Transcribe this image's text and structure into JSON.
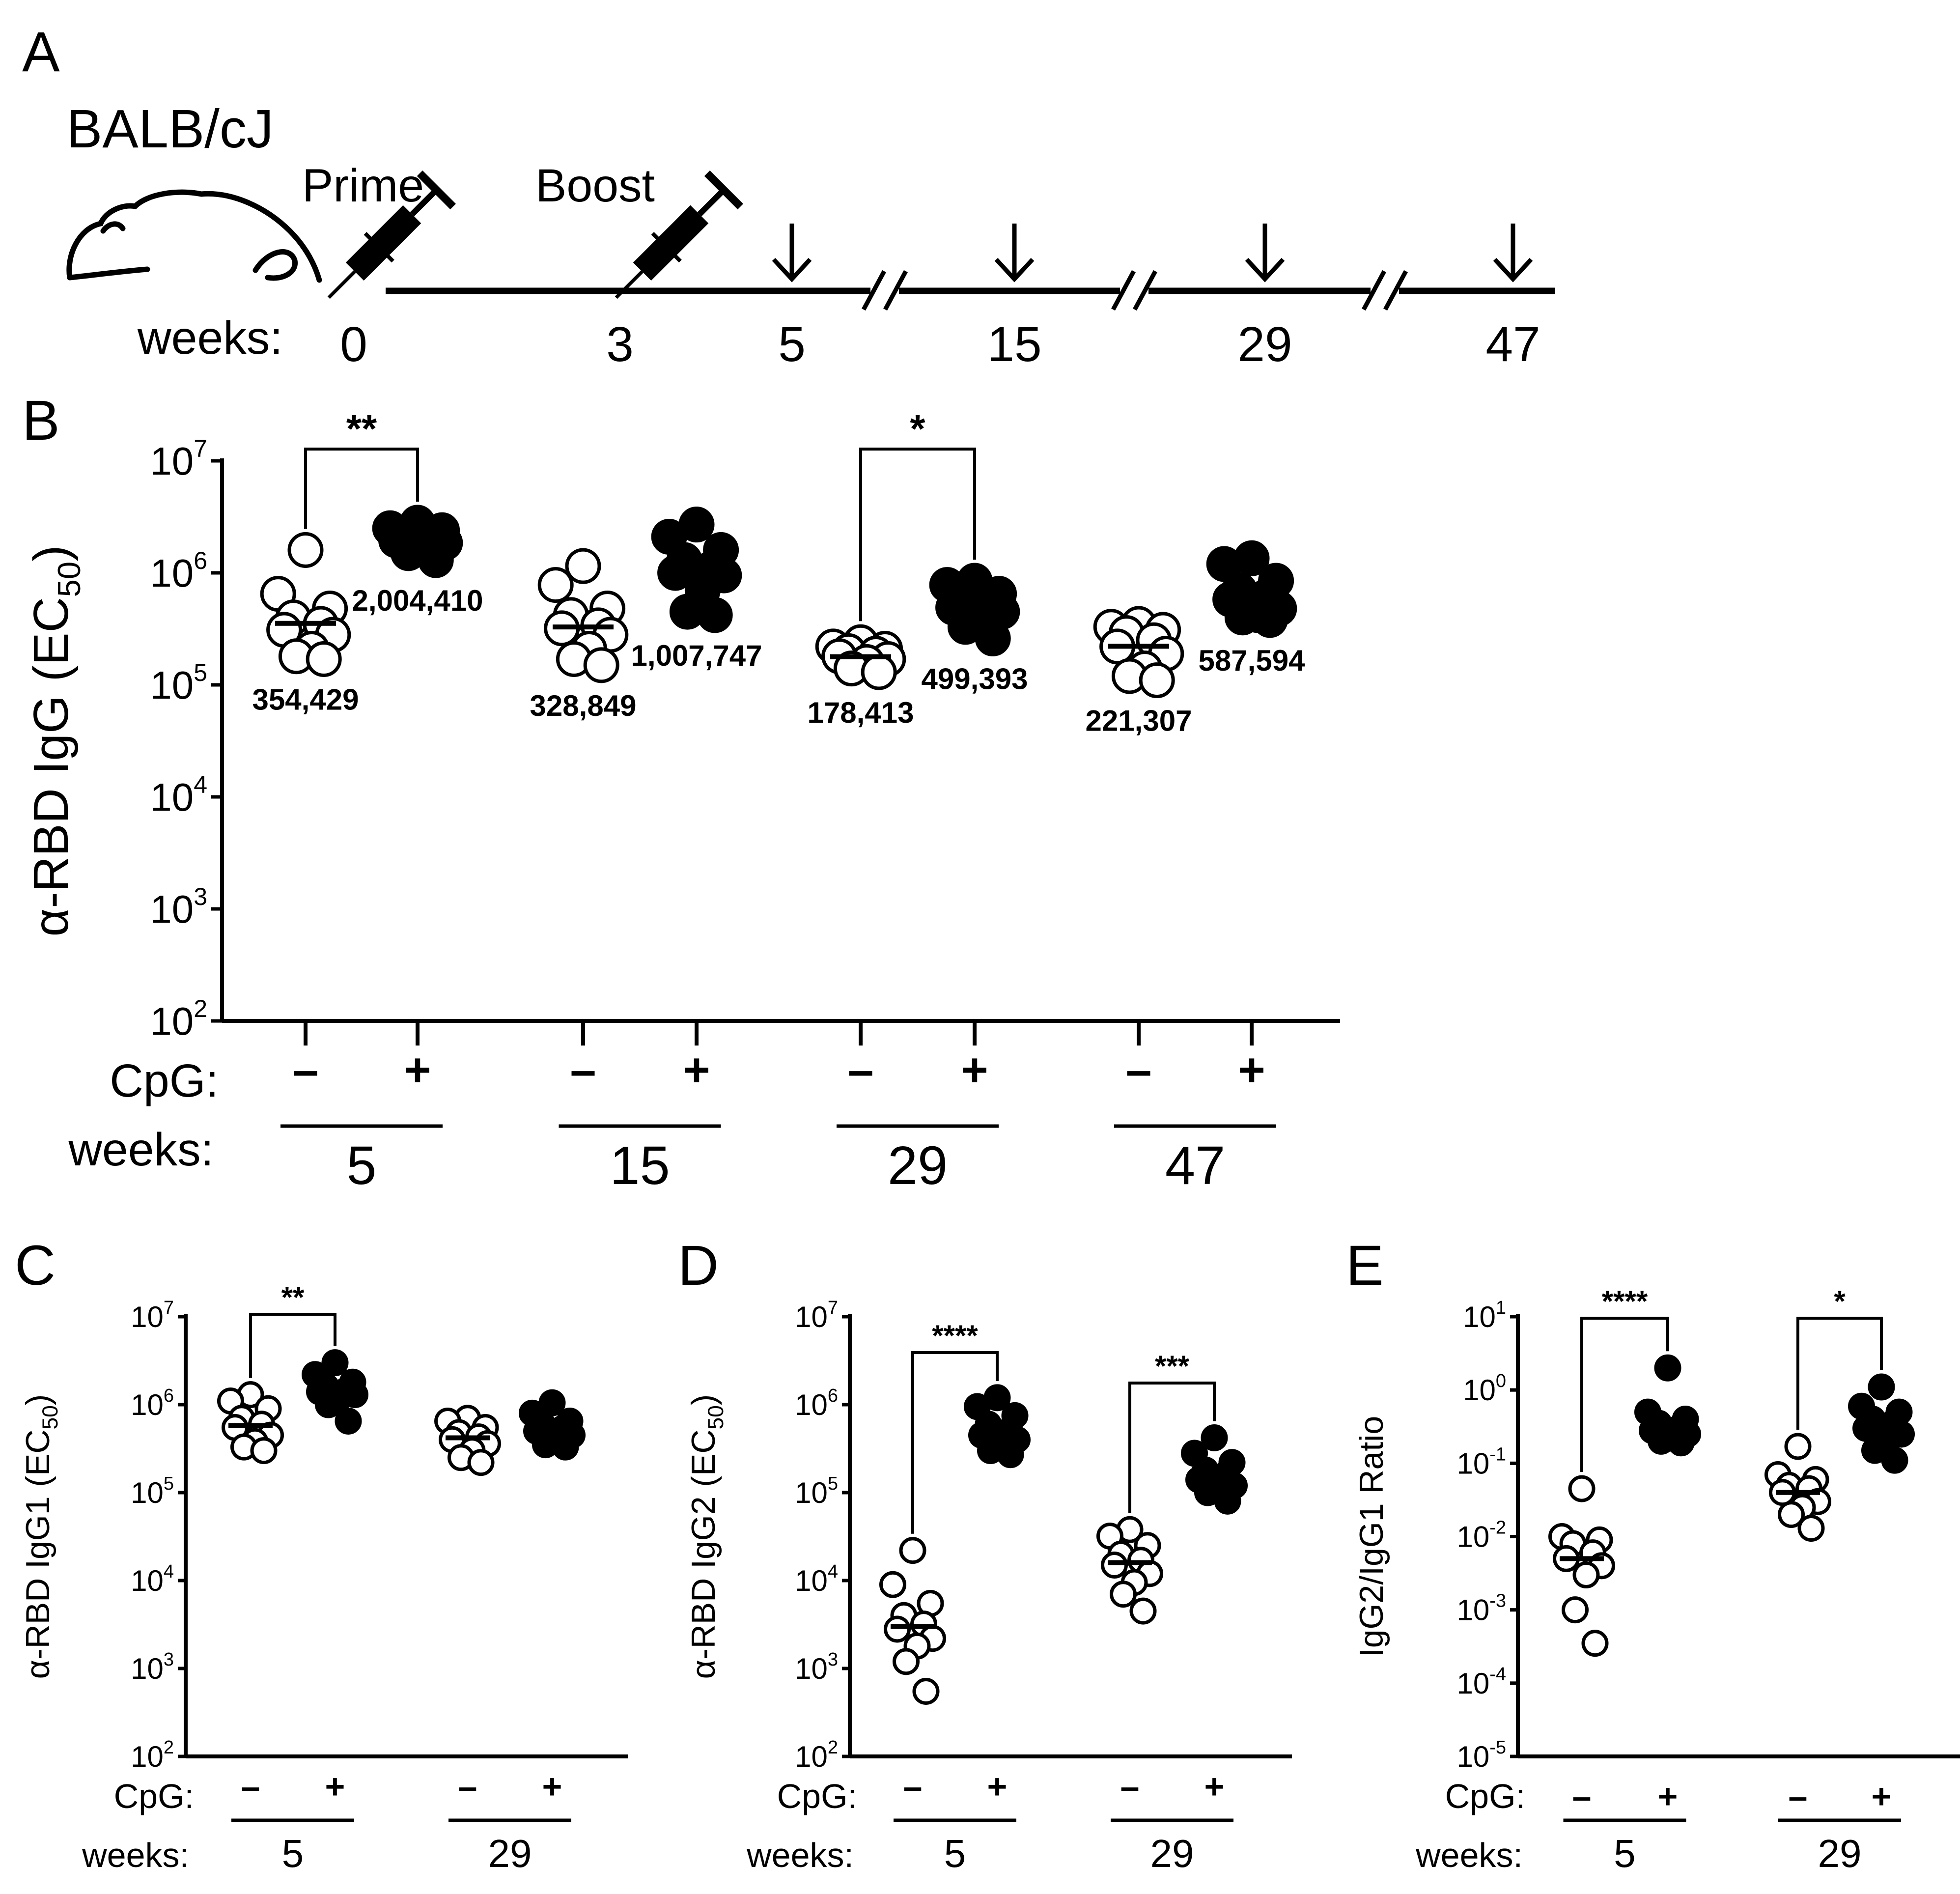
{
  "panels": {
    "A": {
      "letter": "A",
      "strain": "BALB/cJ",
      "prime_label": "Prime",
      "boost_label": "Boost",
      "weeks_label": "weeks:",
      "timeline_ticks": [
        "0",
        "3",
        "5",
        "15",
        "29",
        "47"
      ],
      "bleed_weeks": [
        "5",
        "15",
        "29",
        "47"
      ]
    },
    "B": {
      "letter": "B"
    },
    "C": {
      "letter": "C"
    },
    "D": {
      "letter": "D"
    },
    "E": {
      "letter": "E"
    }
  },
  "colors": {
    "ink": "#000000",
    "open_fill": "#ffffff",
    "closed_fill": "#000000"
  },
  "chart_data": [
    {
      "id": "B",
      "type": "scatter",
      "title": "",
      "ylabel": "α-RBD IgG (EC50)",
      "yscale": "log10",
      "ylim": [
        100,
        10000000
      ],
      "ytick_exponents": [
        "2",
        "3",
        "4",
        "5",
        "6",
        "7"
      ],
      "cpg_label": "CpG:",
      "weeks_label": "weeks:",
      "cpg_symbols": [
        "–",
        "+"
      ],
      "groups": [
        {
          "week": "5",
          "cpg": "–",
          "filled": false,
          "median": 354429,
          "median_label": "354,429",
          "points": [
            1600000,
            650000,
            480000,
            400000,
            350000,
            310000,
            280000,
            210000,
            180000,
            170000
          ]
        },
        {
          "week": "5",
          "cpg": "+",
          "filled": true,
          "median": 2004410,
          "median_label": "2,004,410",
          "points": [
            2800000,
            2500000,
            2400000,
            2200000,
            2100000,
            1950000,
            1850000,
            1700000,
            1500000,
            1300000
          ]
        },
        {
          "week": "15",
          "cpg": "–",
          "filled": false,
          "median": 328849,
          "median_label": "328,849",
          "points": [
            1150000,
            780000,
            480000,
            420000,
            340000,
            320000,
            280000,
            210000,
            170000,
            150000
          ]
        },
        {
          "week": "15",
          "cpg": "+",
          "filled": true,
          "median": 1007747,
          "median_label": "1,007,747",
          "points": [
            2700000,
            2100000,
            1600000,
            1300000,
            1100000,
            1000000,
            950000,
            700000,
            450000,
            420000
          ]
        },
        {
          "week": "29",
          "cpg": "–",
          "filled": false,
          "median": 178413,
          "median_label": "178,413",
          "points": [
            240000,
            220000,
            210000,
            200000,
            190000,
            180000,
            170000,
            160000,
            140000,
            130000
          ]
        },
        {
          "week": "29",
          "cpg": "+",
          "filled": true,
          "median": 499393,
          "median_label": "499,393",
          "points": [
            850000,
            780000,
            650000,
            580000,
            520000,
            490000,
            450000,
            400000,
            330000,
            260000
          ]
        },
        {
          "week": "47",
          "cpg": "–",
          "filled": false,
          "median": 221307,
          "median_label": "221,307",
          "points": [
            350000,
            330000,
            310000,
            290000,
            250000,
            220000,
            190000,
            140000,
            120000,
            110000
          ]
        },
        {
          "week": "47",
          "cpg": "+",
          "filled": true,
          "median": 587594,
          "median_label": "587,594",
          "points": [
            1350000,
            1200000,
            850000,
            700000,
            620000,
            580000,
            480000,
            420000,
            400000,
            380000
          ]
        }
      ],
      "significance": [
        {
          "week": "5",
          "label": "**"
        },
        {
          "week": "29",
          "label": "*"
        }
      ]
    },
    {
      "id": "C",
      "type": "scatter",
      "ylabel": "α-RBD IgG1 (EC50)",
      "yscale": "log10",
      "ylim": [
        100,
        10000000
      ],
      "ytick_exponents": [
        "2",
        "3",
        "4",
        "5",
        "6",
        "7"
      ],
      "cpg_label": "CpG:",
      "weeks_label": "weeks:",
      "cpg_symbols": [
        "–",
        "+"
      ],
      "groups": [
        {
          "week": "5",
          "cpg": "–",
          "filled": false,
          "median": 580000,
          "points": [
            1300000,
            1100000,
            900000,
            700000,
            600000,
            550000,
            450000,
            380000,
            330000,
            300000
          ]
        },
        {
          "week": "5",
          "cpg": "+",
          "filled": true,
          "median": 1420000,
          "points": [
            3000000,
            2200000,
            1800000,
            1600000,
            1450000,
            1400000,
            1300000,
            1200000,
            1000000,
            650000
          ]
        },
        {
          "week": "29",
          "cpg": "–",
          "filled": false,
          "median": 420000,
          "points": [
            700000,
            650000,
            550000,
            480000,
            430000,
            400000,
            360000,
            300000,
            250000,
            220000
          ]
        },
        {
          "week": "29",
          "cpg": "+",
          "filled": true,
          "median": 520000,
          "points": [
            1050000,
            800000,
            650000,
            580000,
            540000,
            500000,
            450000,
            400000,
            350000,
            330000
          ]
        }
      ],
      "significance": [
        {
          "week": "5",
          "label": "**"
        }
      ]
    },
    {
      "id": "D",
      "type": "scatter",
      "ylabel": "α-RBD IgG2 (EC50)",
      "yscale": "log10",
      "ylim": [
        100,
        10000000
      ],
      "ytick_exponents": [
        "2",
        "3",
        "4",
        "5",
        "6",
        "7"
      ],
      "cpg_label": "CpG:",
      "weeks_label": "weeks:",
      "cpg_symbols": [
        "–",
        "+"
      ],
      "groups": [
        {
          "week": "5",
          "cpg": "–",
          "filled": false,
          "median": 3000,
          "points": [
            22000,
            9000,
            5500,
            4000,
            3200,
            2800,
            2200,
            1800,
            1200,
            550
          ]
        },
        {
          "week": "5",
          "cpg": "+",
          "filled": true,
          "median": 480000,
          "points": [
            1200000,
            950000,
            750000,
            600000,
            500000,
            450000,
            400000,
            350000,
            300000,
            270000
          ]
        },
        {
          "week": "29",
          "cpg": "–",
          "filled": false,
          "median": 16000,
          "points": [
            38000,
            32000,
            25000,
            20000,
            17000,
            15000,
            12000,
            9500,
            7000,
            4500
          ]
        },
        {
          "week": "29",
          "cpg": "+",
          "filled": true,
          "median": 150000,
          "points": [
            420000,
            280000,
            220000,
            180000,
            160000,
            140000,
            120000,
            110000,
            100000,
            80000
          ]
        }
      ],
      "significance": [
        {
          "week": "5",
          "label": "****"
        },
        {
          "week": "29",
          "label": "***"
        }
      ]
    },
    {
      "id": "E",
      "type": "scatter",
      "ylabel": "IgG2/IgG1 Ratio",
      "yscale": "log10",
      "ylim": [
        1e-05,
        10
      ],
      "ytick_exponents": [
        "-5",
        "-4",
        "-3",
        "-2",
        "-1",
        "0",
        "1"
      ],
      "cpg_label": "CpG:",
      "weeks_label": "weeks:",
      "cpg_symbols": [
        "–",
        "+"
      ],
      "groups": [
        {
          "week": "5",
          "cpg": "–",
          "filled": false,
          "median": 0.005,
          "points": [
            0.045,
            0.01,
            0.009,
            0.008,
            0.006,
            0.005,
            0.004,
            0.003,
            0.001,
            0.00035
          ]
        },
        {
          "week": "5",
          "cpg": "+",
          "filled": true,
          "median": 0.35,
          "points": [
            2.0,
            0.5,
            0.4,
            0.35,
            0.3,
            0.28,
            0.25,
            0.22,
            0.2,
            0.19
          ]
        },
        {
          "week": "29",
          "cpg": "–",
          "filled": false,
          "median": 0.04,
          "points": [
            0.17,
            0.07,
            0.06,
            0.05,
            0.045,
            0.04,
            0.03,
            0.025,
            0.02,
            0.013
          ]
        },
        {
          "week": "29",
          "cpg": "+",
          "filled": true,
          "median": 0.35,
          "points": [
            1.1,
            0.6,
            0.5,
            0.4,
            0.35,
            0.3,
            0.25,
            0.2,
            0.15,
            0.11
          ]
        }
      ],
      "significance": [
        {
          "week": "5",
          "label": "****"
        },
        {
          "week": "29",
          "label": "*"
        }
      ]
    }
  ]
}
